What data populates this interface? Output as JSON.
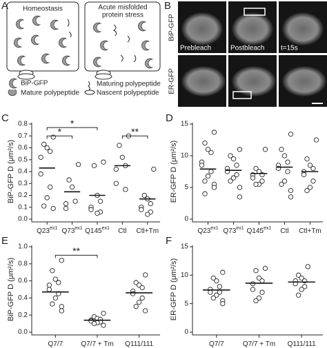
{
  "panel_a": {
    "letter": "A",
    "left_title": "Homeostasis",
    "right_title": [
      "Acute misfolded",
      "protein stress"
    ],
    "legend": [
      "BiP-GFP",
      "Mature polypeptide",
      "Maturing polypeptide",
      "Nascent polypeptide"
    ]
  },
  "panel_b": {
    "letter": "B",
    "rows": [
      "BiP-GFP",
      "ER-GFP"
    ],
    "columns": [
      "Prebleach",
      "Postbleach",
      "t=15s"
    ]
  },
  "chart_data": [
    {
      "type": "strip",
      "panel": "C",
      "ylabel": "BiP-GFP D (μm²/s)",
      "categories": [
        "Q23",
        "Q73",
        "Q145",
        "Ctl",
        "Ctl+Tm"
      ],
      "category_superscripts": [
        "ex1",
        "ex1",
        "ex1",
        null,
        null
      ],
      "ylim": [
        0,
        0.8
      ],
      "yticks": [
        {
          "value": 0,
          "label": "0.0"
        },
        0.1,
        0.2,
        0.3,
        0.4,
        0.5,
        0.6,
        0.7,
        0.8
      ],
      "values": [
        [
          0.69,
          0.63,
          0.6,
          0.57,
          0.52,
          0.38,
          0.27,
          0.18,
          0.11,
          0.09
        ],
        [
          0.46,
          0.33,
          0.27,
          0.15,
          0.13,
          0.09
        ],
        [
          0.48,
          0.45,
          0.2,
          0.15,
          0.1,
          0.08,
          0.06,
          0.05
        ],
        [
          0.7,
          0.62,
          0.52,
          0.45,
          0.42,
          0.3,
          0.25
        ],
        [
          0.42,
          0.2,
          0.17,
          0.13,
          0.1,
          0.08,
          0.06,
          0.04
        ]
      ],
      "means": [
        0.43,
        0.23,
        0.2,
        0.45,
        0.17
      ],
      "significance": [
        {
          "from": "Q23",
          "to": "Q145",
          "y": 0.77,
          "label": "*"
        },
        {
          "from": "Q23",
          "to": "Q73",
          "y": 0.7,
          "label": "*"
        },
        {
          "from": "Ctl",
          "to": "Ctl+Tm",
          "y": 0.7,
          "label": "**"
        }
      ]
    },
    {
      "type": "strip",
      "panel": "D",
      "ylabel": "ER-GFP D (μm²/s)",
      "categories": [
        "Q23",
        "Q73",
        "Q145",
        "Ctl",
        "Ctl+Tm"
      ],
      "category_superscripts": [
        "ex1",
        "ex1",
        "ex1",
        null,
        null
      ],
      "ylim": [
        0,
        15
      ],
      "yticks": [
        0,
        5,
        10,
        15
      ],
      "values": [
        [
          13.7,
          12,
          11,
          10.5,
          9,
          8.5,
          7.5,
          6.8,
          6,
          5.5,
          5,
          4
        ],
        [
          11,
          10,
          9.5,
          8.5,
          8,
          7.5,
          7,
          6.5,
          6,
          5,
          3.5
        ],
        [
          11,
          8,
          7.5,
          7,
          7,
          6.5,
          6,
          5.5,
          5.5
        ],
        [
          13.4,
          11,
          10,
          9,
          8.5,
          8,
          7.5,
          6,
          5.5,
          4.5,
          3.5
        ],
        [
          12.5,
          9.5,
          8.5,
          8,
          7.5,
          7,
          6,
          5,
          4.5
        ]
      ],
      "means": [
        7.9,
        7.7,
        7.2,
        8.2,
        7.5
      ],
      "significance": []
    },
    {
      "type": "strip",
      "panel": "E",
      "ylabel": "BiP-GFP D (μm²/s)",
      "categories": [
        "Q7/7",
        "Q7/7 + Tm",
        "Q111/111"
      ],
      "category_superscripts": [
        null,
        null,
        null
      ],
      "ylim": [
        0,
        1
      ],
      "yticks": [
        {
          "value": 0,
          "label": "0.0"
        },
        0.2,
        0.4,
        0.6,
        0.8,
        {
          "value": 1,
          "label": "1.0"
        }
      ],
      "values": [
        [
          0.84,
          0.72,
          0.62,
          0.58,
          0.55,
          0.5,
          0.45,
          0.4,
          0.33,
          0.3,
          0.25
        ],
        [
          0.22,
          0.18,
          0.16,
          0.15,
          0.14,
          0.13,
          0.12,
          0.11,
          0.1,
          0.08
        ],
        [
          0.67,
          0.58,
          0.55,
          0.52,
          0.48,
          0.45,
          0.4,
          0.35,
          0.3,
          0.25
        ]
      ],
      "means": [
        0.47,
        0.14,
        0.46
      ],
      "significance": [
        {
          "from": "Q7/7",
          "to": "Q7/7 + Tm",
          "y": 0.9,
          "label": "**"
        }
      ]
    },
    {
      "type": "strip",
      "panel": "F",
      "ylabel": "ER-GFP D (μm²/s)",
      "categories": [
        "Q7/7",
        "Q7/7 + Tm",
        "Q111/111"
      ],
      "category_superscripts": [
        null,
        null,
        null
      ],
      "ylim": [
        0,
        15
      ],
      "yticks": [
        0,
        5,
        10,
        15
      ],
      "values": [
        [
          10.5,
          9.5,
          9,
          8,
          7.5,
          7,
          7,
          6.5,
          6,
          5.5,
          5
        ],
        [
          11.2,
          10.8,
          9.5,
          9,
          8.5,
          7.5,
          7,
          6,
          5.5
        ],
        [
          11.5,
          10,
          9.5,
          9,
          9,
          8.5,
          8,
          7.5,
          6.5
        ]
      ],
      "means": [
        7.4,
        8.6,
        8.8
      ],
      "significance": []
    }
  ]
}
